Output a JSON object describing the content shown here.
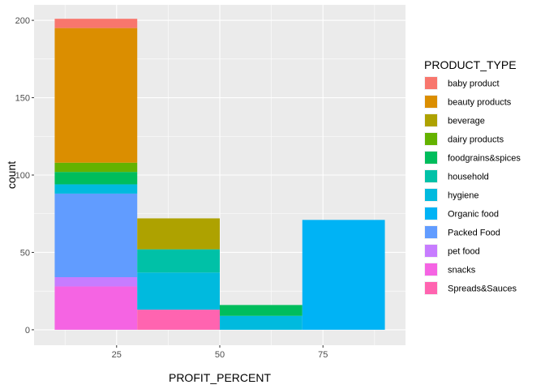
{
  "chart_data": {
    "type": "bar",
    "stacked": true,
    "xlabel": "PROFIT_PERCENT",
    "ylabel": "count",
    "xlim": [
      5,
      95
    ],
    "ylim": [
      -10,
      210
    ],
    "x_ticks": [
      25,
      50,
      75
    ],
    "y_ticks": [
      0,
      50,
      100,
      150,
      200
    ],
    "grid": true,
    "legend_position": "right",
    "legend_title": "PRODUCT_TYPE",
    "bins": [
      {
        "start": 10,
        "end": 30
      },
      {
        "start": 30,
        "end": 50
      },
      {
        "start": 50,
        "end": 70
      },
      {
        "start": 70,
        "end": 90
      }
    ],
    "series": [
      {
        "name": "baby product",
        "color": "#F8766D",
        "values": [
          6,
          0,
          0,
          0
        ]
      },
      {
        "name": "beauty products",
        "color": "#DB8E00",
        "values": [
          87,
          0,
          0,
          0
        ]
      },
      {
        "name": "beverage",
        "color": "#AEA200",
        "values": [
          0,
          20,
          0,
          0
        ]
      },
      {
        "name": "dairy products",
        "color": "#64B200",
        "values": [
          6,
          0,
          0,
          0
        ]
      },
      {
        "name": "foodgrains&spices",
        "color": "#00BD5C",
        "values": [
          8,
          0,
          7,
          0
        ]
      },
      {
        "name": "household",
        "color": "#00C1A7",
        "values": [
          0,
          15,
          0,
          0
        ]
      },
      {
        "name": "hygiene",
        "color": "#00BADE",
        "values": [
          6,
          24,
          9,
          0
        ]
      },
      {
        "name": "Organic food",
        "color": "#00B3F5",
        "values": [
          0,
          0,
          0,
          71
        ]
      },
      {
        "name": "Packed Food",
        "color": "#619CFF",
        "values": [
          54,
          0,
          0,
          0
        ]
      },
      {
        "name": "pet food",
        "color": "#C77CFF",
        "values": [
          6,
          0,
          0,
          0
        ]
      },
      {
        "name": "snacks",
        "color": "#F564E3",
        "values": [
          28,
          0,
          0,
          0
        ]
      },
      {
        "name": "Spreads&Sauces",
        "color": "#FF64B0",
        "values": [
          0,
          13,
          0,
          0
        ]
      }
    ],
    "panel_background": "#EBEBEB",
    "grid_major_color": "#FFFFFF"
  }
}
